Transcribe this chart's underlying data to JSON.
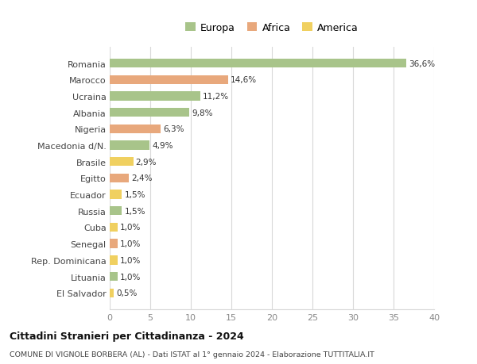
{
  "categories": [
    "Romania",
    "Marocco",
    "Ucraina",
    "Albania",
    "Nigeria",
    "Macedonia d/N.",
    "Brasile",
    "Egitto",
    "Ecuador",
    "Russia",
    "Cuba",
    "Senegal",
    "Rep. Dominicana",
    "Lituania",
    "El Salvador"
  ],
  "values": [
    36.6,
    14.6,
    11.2,
    9.8,
    6.3,
    4.9,
    2.9,
    2.4,
    1.5,
    1.5,
    1.0,
    1.0,
    1.0,
    1.0,
    0.5
  ],
  "labels": [
    "36,6%",
    "14,6%",
    "11,2%",
    "9,8%",
    "6,3%",
    "4,9%",
    "2,9%",
    "2,4%",
    "1,5%",
    "1,5%",
    "1,0%",
    "1,0%",
    "1,0%",
    "1,0%",
    "0,5%"
  ],
  "continents": [
    "Europa",
    "Africa",
    "Europa",
    "Europa",
    "Africa",
    "Europa",
    "America",
    "Africa",
    "America",
    "Europa",
    "America",
    "Africa",
    "America",
    "Europa",
    "America"
  ],
  "colors": {
    "Europa": "#a8c48a",
    "Africa": "#e8a87c",
    "America": "#f0d060"
  },
  "xlim": [
    0,
    40
  ],
  "xticks": [
    0,
    5,
    10,
    15,
    20,
    25,
    30,
    35,
    40
  ],
  "title": "Cittadini Stranieri per Cittadinanza - 2024",
  "subtitle": "COMUNE DI VIGNOLE BORBERA (AL) - Dati ISTAT al 1° gennaio 2024 - Elaborazione TUTTITALIA.IT",
  "background_color": "#ffffff",
  "grid_color": "#d8d8d8",
  "bar_height": 0.55
}
